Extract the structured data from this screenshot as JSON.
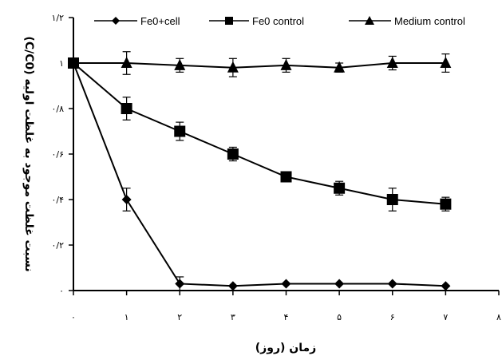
{
  "chart_data": {
    "type": "line",
    "title": "",
    "xlabel": "زمان (روز)",
    "ylabel": "نسبت غلظت موجود به غلظت اولیه (C/C0)",
    "ylabel_unit": "(C/C0)",
    "ylabel_text": "نسبت غلظت موجود به غلظت اولیه",
    "xlim": [
      0,
      8
    ],
    "ylim": [
      0,
      1.2
    ],
    "x_ticks": [
      0,
      1,
      2,
      3,
      4,
      5,
      6,
      7,
      8
    ],
    "x_tick_labels": [
      "۰",
      "۱",
      "۲",
      "۳",
      "۴",
      "۵",
      "۶",
      "۷",
      "۸"
    ],
    "y_ticks": [
      0,
      0.2,
      0.4,
      0.6,
      0.8,
      1,
      1.2
    ],
    "y_tick_labels": [
      "۰",
      "۰/۲",
      "۰/۴",
      "۰/۶",
      "۰/۸",
      "۱",
      "۱/۲"
    ],
    "grid": false,
    "legend_position": "top",
    "series": [
      {
        "name": "Fe0+cell",
        "marker": "diamond",
        "x": [
          0,
          1,
          2,
          3,
          4,
          5,
          6,
          7
        ],
        "values": [
          1.0,
          0.4,
          0.03,
          0.02,
          0.03,
          0.03,
          0.03,
          0.02
        ],
        "errors": [
          0.0,
          0.05,
          0.03,
          0.0,
          0.0,
          0.0,
          0.0,
          0.0
        ]
      },
      {
        "name": "Fe0 control",
        "marker": "square",
        "x": [
          0,
          1,
          2,
          3,
          4,
          5,
          6,
          7
        ],
        "values": [
          1.0,
          0.8,
          0.7,
          0.6,
          0.5,
          0.45,
          0.4,
          0.38
        ],
        "errors": [
          0.0,
          0.05,
          0.04,
          0.03,
          0.02,
          0.03,
          0.05,
          0.03
        ]
      },
      {
        "name": "Medium control",
        "marker": "triangle",
        "x": [
          0,
          1,
          2,
          3,
          4,
          5,
          6,
          7
        ],
        "values": [
          1.0,
          1.0,
          0.99,
          0.98,
          0.99,
          0.98,
          1.0,
          1.0
        ],
        "errors": [
          0.0,
          0.05,
          0.03,
          0.04,
          0.03,
          0.02,
          0.03,
          0.04
        ]
      }
    ]
  }
}
